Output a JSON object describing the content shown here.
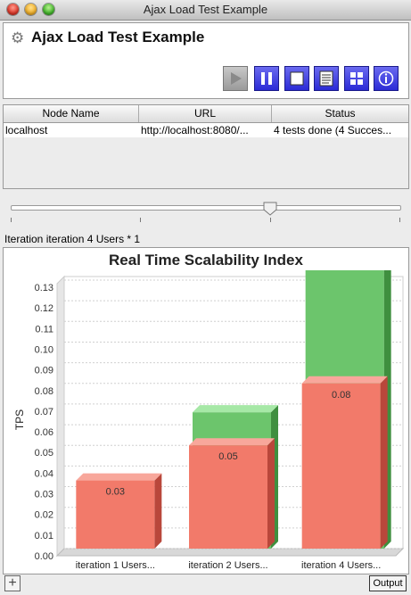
{
  "window": {
    "title": "Ajax Load Test Example"
  },
  "header": {
    "title": "Ajax Load Test Example",
    "gear_icon": "gear-icon"
  },
  "toolbar": {
    "buttons": [
      {
        "name": "run-button",
        "icon": "play-icon",
        "enabled": false
      },
      {
        "name": "pause-button",
        "icon": "pause-icon",
        "enabled": true
      },
      {
        "name": "stop-button",
        "icon": "stop-icon",
        "enabled": true
      },
      {
        "name": "report-button",
        "icon": "document-icon",
        "enabled": true
      },
      {
        "name": "layout-button",
        "icon": "grid-icon",
        "enabled": true
      },
      {
        "name": "info-button",
        "icon": "info-icon",
        "enabled": true
      }
    ]
  },
  "table": {
    "columns": [
      "Node Name",
      "URL",
      "Status"
    ],
    "rows": [
      [
        "localhost",
        "http://localhost:8080/...",
        "4 tests done (4 Succes..."
      ]
    ]
  },
  "slider": {
    "value_fraction": 0.67,
    "tick_count": 4
  },
  "iteration_label": "Iteration iteration 4 Users * 1",
  "chart_data": {
    "type": "bar",
    "title": "Real Time Scalability Index",
    "ylabel": "TPS",
    "xlabel": "",
    "ylim": [
      0,
      0.13
    ],
    "yticks": [
      0.0,
      0.01,
      0.02,
      0.03,
      0.04,
      0.05,
      0.06,
      0.07,
      0.08,
      0.09,
      0.1,
      0.11,
      0.12,
      0.13
    ],
    "categories": [
      "iteration 1 Users...",
      "iteration 2 Users...",
      "iteration 4 Users..."
    ],
    "series": [
      {
        "values": [
          0.033,
          0.066,
          0.135
        ],
        "color": "#5cbf5c"
      },
      {
        "values": [
          0.033,
          0.05,
          0.08
        ],
        "color": "#f06c5c"
      }
    ],
    "data_labels": [
      "0.03",
      "0.05",
      "0.08"
    ],
    "grid": true
  },
  "bottom": {
    "plus_label": "+",
    "output_label": "Output"
  }
}
